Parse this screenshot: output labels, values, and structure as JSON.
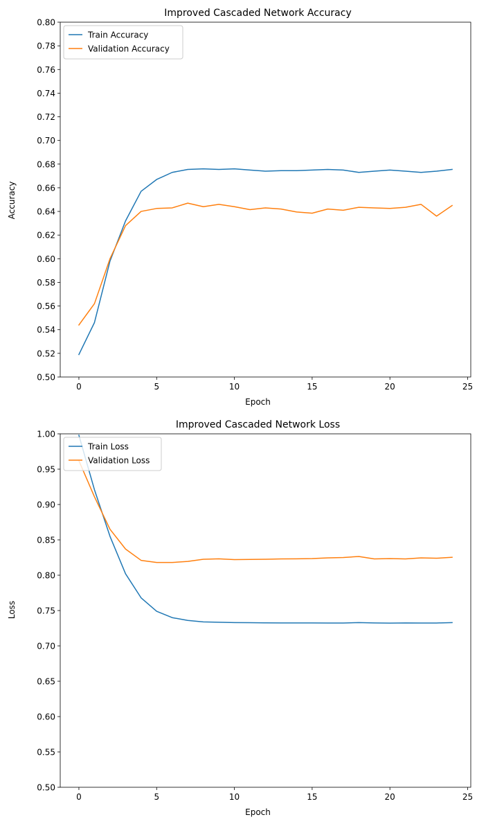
{
  "chart_data": [
    {
      "type": "line",
      "title": "Improved Cascaded Network Accuracy",
      "xlabel": "Epoch",
      "ylabel": "Accuracy",
      "xlim": [
        -1.2,
        25.2
      ],
      "ylim": [
        0.5,
        0.8
      ],
      "xticks": [
        0,
        5,
        10,
        15,
        20,
        25
      ],
      "yticks": [
        0.5,
        0.52,
        0.54,
        0.56,
        0.58,
        0.6,
        0.62,
        0.64,
        0.66,
        0.68,
        0.7,
        0.72,
        0.74,
        0.76,
        0.78,
        0.8
      ],
      "ytick_decimals": 2,
      "grid": false,
      "legend": "upper left",
      "x": [
        0,
        1,
        2,
        3,
        4,
        5,
        6,
        7,
        8,
        9,
        10,
        11,
        12,
        13,
        14,
        15,
        16,
        17,
        18,
        19,
        20,
        21,
        22,
        23,
        24
      ],
      "series": [
        {
          "name": "Train Accuracy",
          "color": "#1f77b4",
          "values": [
            0.519,
            0.546,
            0.598,
            0.632,
            0.657,
            0.667,
            0.673,
            0.6755,
            0.676,
            0.6755,
            0.676,
            0.675,
            0.674,
            0.6745,
            0.6745,
            0.675,
            0.6755,
            0.675,
            0.673,
            0.674,
            0.675,
            0.674,
            0.673,
            0.674,
            0.6755
          ]
        },
        {
          "name": "Validation Accuracy",
          "color": "#ff7f0e",
          "values": [
            0.544,
            0.562,
            0.6,
            0.628,
            0.64,
            0.6425,
            0.643,
            0.647,
            0.644,
            0.646,
            0.644,
            0.6415,
            0.643,
            0.642,
            0.6395,
            0.6385,
            0.642,
            0.641,
            0.6435,
            0.643,
            0.6425,
            0.6435,
            0.646,
            0.636,
            0.645
          ]
        }
      ]
    },
    {
      "type": "line",
      "title": "Improved Cascaded Network Loss",
      "xlabel": "Epoch",
      "ylabel": "Loss",
      "xlim": [
        -1.2,
        25.2
      ],
      "ylim": [
        0.5,
        1.0
      ],
      "xticks": [
        0,
        5,
        10,
        15,
        20,
        25
      ],
      "yticks": [
        0.5,
        0.55,
        0.6,
        0.65,
        0.7,
        0.75,
        0.8,
        0.85,
        0.9,
        0.95,
        1.0
      ],
      "ytick_decimals": 2,
      "grid": false,
      "legend": "upper left",
      "x": [
        0,
        1,
        2,
        3,
        4,
        5,
        6,
        7,
        8,
        9,
        10,
        11,
        12,
        13,
        14,
        15,
        16,
        17,
        18,
        19,
        20,
        21,
        22,
        23,
        24
      ],
      "series": [
        {
          "name": "Train Loss",
          "color": "#1f77b4",
          "values": [
            0.998,
            0.921,
            0.855,
            0.802,
            0.768,
            0.749,
            0.74,
            0.736,
            0.734,
            0.7335,
            0.733,
            0.7328,
            0.7326,
            0.7325,
            0.7325,
            0.7325,
            0.7324,
            0.7323,
            0.733,
            0.7325,
            0.7322,
            0.7325,
            0.7323,
            0.7324,
            0.733
          ]
        },
        {
          "name": "Validation Loss",
          "color": "#ff7f0e",
          "values": [
            0.962,
            0.911,
            0.865,
            0.837,
            0.821,
            0.818,
            0.818,
            0.8195,
            0.8225,
            0.8232,
            0.822,
            0.8223,
            0.8226,
            0.823,
            0.8232,
            0.8235,
            0.8245,
            0.825,
            0.8265,
            0.823,
            0.8235,
            0.823,
            0.8245,
            0.824,
            0.8253
          ]
        }
      ]
    }
  ]
}
